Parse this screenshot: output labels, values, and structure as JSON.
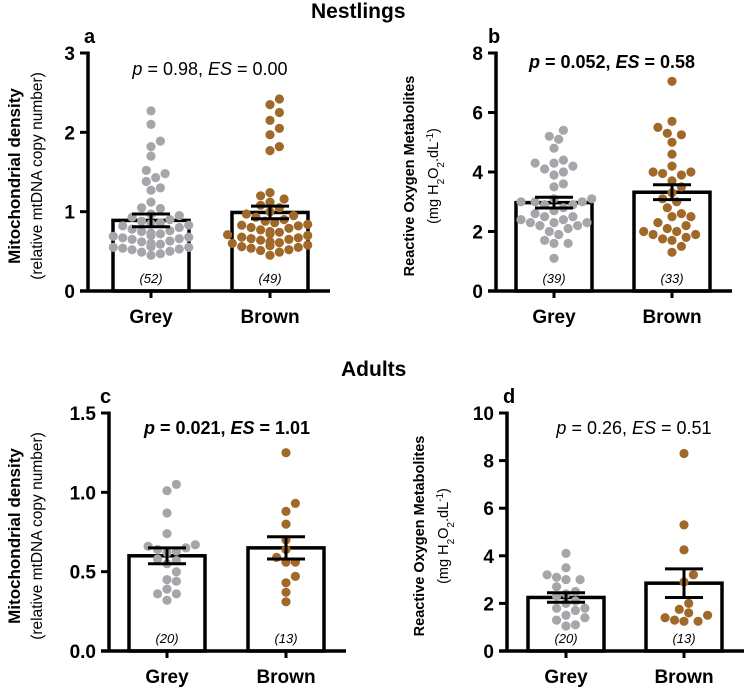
{
  "sections": [
    {
      "title": "Nestlings"
    },
    {
      "title": "Adults"
    }
  ],
  "colors": {
    "grey": "#A6A6AA",
    "brown": "#A0692A",
    "axis": "#000000",
    "bar_fill": "#ffffff"
  },
  "chart_data": [
    {
      "panel": "a",
      "section": "Nestlings",
      "type": "bar",
      "ylabel_main": "Mitochondrial density",
      "ylabel_sub": "(relative mtDNA copy number)",
      "ylim": [
        0,
        3
      ],
      "yticks": [
        0,
        1,
        2,
        3
      ],
      "ytick_labels": [
        "0",
        "1",
        "2",
        "3"
      ],
      "categories": [
        "Grey",
        "Brown"
      ],
      "annotation": {
        "p_label": "p",
        "p_value": " = 0.98, ",
        "es_label": "ES",
        "es_value": " = 0.00",
        "bold": false
      },
      "series": [
        {
          "name": "Grey",
          "color_key": "grey",
          "mean": 0.89,
          "sem": 0.08,
          "n_label": "(52)",
          "points": [
            2.27,
            2.1,
            1.89,
            1.82,
            1.7,
            1.52,
            1.48,
            1.43,
            1.38,
            1.3,
            1.27,
            1.12,
            1.05,
            1.04,
            0.97,
            0.95,
            0.93,
            0.9,
            0.88,
            0.86,
            0.85,
            0.83,
            0.82,
            0.8,
            0.78,
            0.76,
            0.75,
            0.73,
            0.72,
            0.7,
            0.69,
            0.68,
            0.67,
            0.66,
            0.65,
            0.63,
            0.62,
            0.6,
            0.59,
            0.58,
            0.57,
            0.56,
            0.56,
            0.55,
            0.55,
            0.54,
            0.53,
            0.52,
            0.5,
            0.49,
            0.47,
            0.45
          ]
        },
        {
          "name": "Brown",
          "color_key": "brown",
          "mean": 0.99,
          "sem": 0.08,
          "n_label": "(49)",
          "points": [
            2.42,
            2.35,
            2.25,
            2.15,
            2.05,
            1.97,
            1.82,
            1.77,
            1.24,
            1.2,
            1.16,
            1.12,
            1.08,
            1.05,
            1.0,
            0.97,
            0.95,
            0.93,
            0.9,
            0.88,
            0.86,
            0.84,
            0.83,
            0.82,
            0.8,
            0.79,
            0.77,
            0.75,
            0.74,
            0.72,
            0.71,
            0.7,
            0.68,
            0.67,
            0.66,
            0.65,
            0.64,
            0.62,
            0.61,
            0.6,
            0.58,
            0.57,
            0.56,
            0.55,
            0.54,
            0.52,
            0.51,
            0.49,
            0.45
          ]
        }
      ]
    },
    {
      "panel": "b",
      "section": "Nestlings",
      "type": "bar",
      "ylabel_main": "Reactive Oxygen Metabolites",
      "ylabel_sub": "(mg H2O2.dL-1)",
      "ylim": [
        0,
        8
      ],
      "yticks": [
        0,
        2,
        4,
        6,
        8
      ],
      "ytick_labels": [
        "0",
        "2",
        "4",
        "6",
        "8"
      ],
      "categories": [
        "Grey",
        "Brown"
      ],
      "annotation": {
        "p_label": "p",
        "p_value": " = 0.052, ",
        "es_label": "ES",
        "es_value": " = 0.58",
        "bold": true
      },
      "series": [
        {
          "name": "Grey",
          "color_key": "grey",
          "mean": 2.97,
          "sem": 0.18,
          "n_label": "(39)",
          "points": [
            5.4,
            5.2,
            5.1,
            4.8,
            4.4,
            4.3,
            4.3,
            4.2,
            4.1,
            4.0,
            3.9,
            3.6,
            3.5,
            3.1,
            3.1,
            3.0,
            3.0,
            3.0,
            2.9,
            2.9,
            2.8,
            2.7,
            2.6,
            2.5,
            2.5,
            2.4,
            2.4,
            2.3,
            2.3,
            2.3,
            2.2,
            2.2,
            2.1,
            2.0,
            1.9,
            1.7,
            1.6,
            1.6,
            1.1
          ]
        },
        {
          "name": "Brown",
          "color_key": "brown",
          "mean": 3.32,
          "sem": 0.25,
          "n_label": "(33)",
          "points": [
            7.05,
            5.7,
            5.5,
            5.3,
            5.25,
            5.0,
            4.6,
            4.2,
            4.0,
            4.0,
            3.95,
            3.9,
            3.7,
            3.5,
            3.3,
            3.1,
            3.0,
            2.8,
            2.6,
            2.5,
            2.5,
            2.3,
            2.2,
            2.1,
            2.0,
            2.0,
            1.9,
            1.9,
            1.8,
            1.75,
            1.7,
            1.5,
            1.3
          ]
        }
      ]
    },
    {
      "panel": "c",
      "section": "Adults",
      "type": "bar",
      "ylabel_main": "Mitochondrial density",
      "ylabel_sub": "(relative mtDNA copy number)",
      "ylim": [
        0,
        1.5
      ],
      "yticks": [
        0,
        0.5,
        1.0,
        1.5
      ],
      "ytick_labels": [
        "0.0",
        "0.5",
        "1.0",
        "1.5"
      ],
      "categories": [
        "Grey",
        "Brown"
      ],
      "annotation": {
        "p_label": "p",
        "p_value": " = 0.021, ",
        "es_label": "ES",
        "es_value": " = 1.01",
        "bold": true
      },
      "series": [
        {
          "name": "Grey",
          "color_key": "grey",
          "mean": 0.6,
          "sem": 0.05,
          "n_label": "(20)",
          "points": [
            1.05,
            1.01,
            0.87,
            0.74,
            0.67,
            0.66,
            0.65,
            0.64,
            0.63,
            0.62,
            0.58,
            0.57,
            0.55,
            0.5,
            0.45,
            0.44,
            0.39,
            0.36,
            0.36,
            0.32
          ]
        },
        {
          "name": "Brown",
          "color_key": "brown",
          "mean": 0.65,
          "sem": 0.07,
          "n_label": "(13)",
          "points": [
            1.25,
            0.93,
            0.88,
            0.8,
            0.7,
            0.64,
            0.59,
            0.56,
            0.56,
            0.47,
            0.43,
            0.37,
            0.31
          ]
        }
      ]
    },
    {
      "panel": "d",
      "section": "Adults",
      "type": "bar",
      "ylabel_main": "Reactive Oxygen Metabolites",
      "ylabel_sub": "(mg H2O2.dL-1)",
      "ylim": [
        0,
        10
      ],
      "yticks": [
        0,
        2,
        4,
        6,
        8,
        10
      ],
      "ytick_labels": [
        "0",
        "2",
        "4",
        "6",
        "8",
        "10"
      ],
      "categories": [
        "Grey",
        "Brown"
      ],
      "annotation": {
        "p_label": "p",
        "p_value": " = 0.26, ",
        "es_label": "ES",
        "es_value": " = 0.51",
        "bold": false
      },
      "series": [
        {
          "name": "Grey",
          "color_key": "grey",
          "mean": 2.25,
          "sem": 0.2,
          "n_label": "(20)",
          "points": [
            4.1,
            3.5,
            3.2,
            3.1,
            3.0,
            3.0,
            2.7,
            2.5,
            2.4,
            2.3,
            2.1,
            2.0,
            1.8,
            1.8,
            1.7,
            1.5,
            1.4,
            1.3,
            1.1,
            1.05
          ]
        },
        {
          "name": "Brown",
          "color_key": "brown",
          "mean": 2.85,
          "sem": 0.6,
          "n_label": "(13)",
          "points": [
            8.3,
            5.3,
            4.25,
            3.2,
            2.9,
            2.0,
            1.75,
            1.6,
            1.5,
            1.4,
            1.3,
            1.25,
            1.25
          ]
        }
      ]
    }
  ]
}
